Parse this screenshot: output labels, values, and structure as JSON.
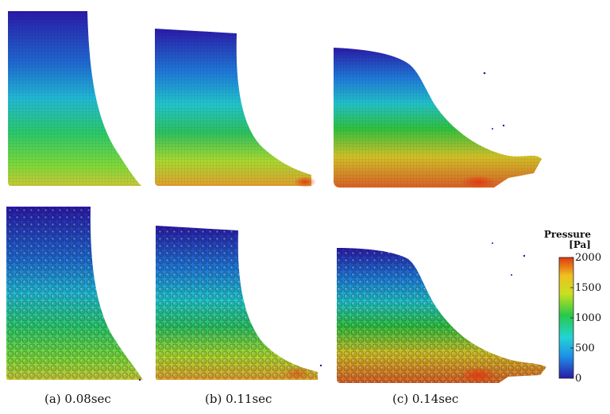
{
  "captions": [
    "(a) 0.08sec",
    "(b) 0.11sec",
    "(c) 0.14sec"
  ],
  "colorbar": {
    "title": "Pressure",
    "unit": "[Pa]",
    "ticks": [
      "2000",
      "1500",
      "1000",
      "500",
      "0"
    ],
    "min": 0,
    "max": 2000,
    "colors": [
      "#2a1aa8",
      "#1f8fe8",
      "#22d4d4",
      "#28c84a",
      "#c8e020",
      "#f0c020",
      "#e03810"
    ]
  },
  "rows": [
    "mesh",
    "particles"
  ]
}
